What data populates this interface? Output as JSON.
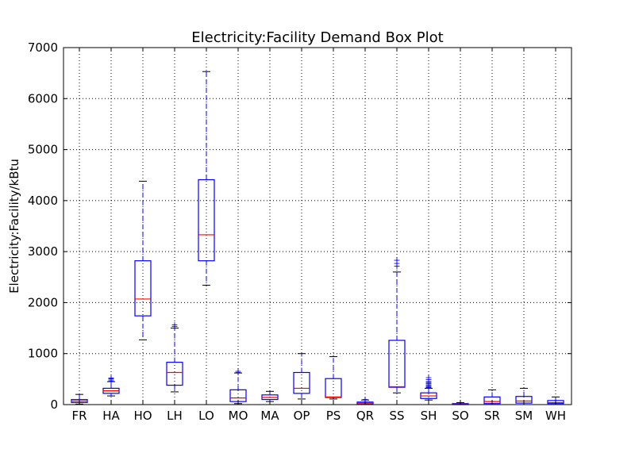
{
  "chart_data": {
    "type": "box",
    "title": "Electricity:Facility Demand Box Plot",
    "xlabel": "",
    "ylabel": "Electricity:Facility/kBtu",
    "ylim": [
      0,
      7000
    ],
    "yticks": [
      0,
      1000,
      2000,
      3000,
      4000,
      5000,
      6000,
      7000
    ],
    "grid": true,
    "colors": {
      "box": "#0000ff",
      "median": "#ff0000",
      "whisker": "#0000ff",
      "cap": "#000000",
      "outlier": "#0000ff",
      "grid": "#000000"
    },
    "categories": [
      "FR",
      "HA",
      "HO",
      "LH",
      "LO",
      "MO",
      "MA",
      "OP",
      "PS",
      "QR",
      "SS",
      "SH",
      "SO",
      "SR",
      "SM",
      "WH"
    ],
    "boxes": [
      {
        "category": "FR",
        "whislo": 10,
        "q1": 40,
        "med": 70,
        "q3": 100,
        "whishi": 200,
        "fliers": []
      },
      {
        "category": "HA",
        "whislo": 170,
        "q1": 220,
        "med": 270,
        "q3": 320,
        "whishi": 450,
        "fliers": [
          470,
          490,
          510,
          530
        ]
      },
      {
        "category": "HO",
        "whislo": 1270,
        "q1": 1740,
        "med": 2070,
        "q3": 2820,
        "whishi": 4380,
        "fliers": []
      },
      {
        "category": "LH",
        "whislo": 250,
        "q1": 380,
        "med": 630,
        "q3": 830,
        "whishi": 1500,
        "fliers": [
          1540,
          1570
        ]
      },
      {
        "category": "LO",
        "whislo": 2340,
        "q1": 2820,
        "med": 3330,
        "q3": 4410,
        "whishi": 6530,
        "fliers": []
      },
      {
        "category": "MO",
        "whislo": 20,
        "q1": 60,
        "med": 130,
        "q3": 290,
        "whishi": 620,
        "fliers": [
          640,
          660
        ]
      },
      {
        "category": "MA",
        "whislo": 60,
        "q1": 100,
        "med": 140,
        "q3": 190,
        "whishi": 260,
        "fliers": []
      },
      {
        "category": "OP",
        "whislo": 110,
        "q1": 220,
        "med": 320,
        "q3": 630,
        "whishi": 1000,
        "fliers": []
      },
      {
        "category": "PS",
        "whislo": 110,
        "q1": 140,
        "med": 150,
        "q3": 510,
        "whishi": 940,
        "fliers": []
      },
      {
        "category": "QR",
        "whislo": 0,
        "q1": 10,
        "med": 30,
        "q3": 50,
        "whishi": 90,
        "fliers": [
          100,
          110
        ]
      },
      {
        "category": "SS",
        "whislo": 230,
        "q1": 340,
        "med": 350,
        "q3": 1260,
        "whishi": 2600,
        "fliers": [
          2720,
          2780,
          2840
        ]
      },
      {
        "category": "SH",
        "whislo": 90,
        "q1": 120,
        "med": 170,
        "q3": 230,
        "whishi": 320,
        "fliers": [
          340,
          360,
          380,
          400,
          420,
          440,
          460,
          500,
          540
        ]
      },
      {
        "category": "SO",
        "whislo": 0,
        "q1": 0,
        "med": 10,
        "q3": 20,
        "whishi": 40,
        "fliers": []
      },
      {
        "category": "SR",
        "whislo": 0,
        "q1": 20,
        "med": 60,
        "q3": 150,
        "whishi": 290,
        "fliers": []
      },
      {
        "category": "SM",
        "whislo": 0,
        "q1": 30,
        "med": 70,
        "q3": 160,
        "whishi": 320,
        "fliers": []
      },
      {
        "category": "WH",
        "whislo": 0,
        "q1": 20,
        "med": 40,
        "q3": 80,
        "whishi": 150,
        "fliers": []
      }
    ]
  }
}
